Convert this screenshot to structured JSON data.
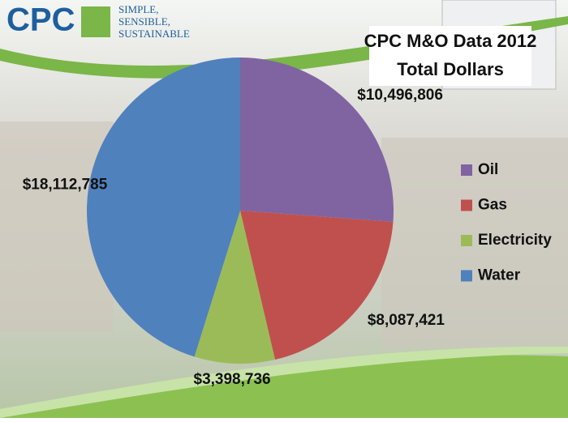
{
  "logo": {
    "text": "CPC",
    "tagline": [
      "SIMPLE,",
      "SENSIBLE,",
      "SUSTAINABLE"
    ]
  },
  "chart_data": {
    "type": "pie",
    "title": [
      "CPC M&O Data 2012",
      "Total Dollars"
    ],
    "categories": [
      "Oil",
      "Gas",
      "Electricity",
      "Water"
    ],
    "values": [
      10496806,
      8087421,
      3398736,
      18112785
    ],
    "value_labels": [
      "$10,496,806",
      "$8,087,421",
      "$3,398,736",
      "$18,112,785"
    ],
    "colors": [
      "#8064a2",
      "#c0504d",
      "#9bbb59",
      "#4f81bd"
    ],
    "legend": "right"
  }
}
